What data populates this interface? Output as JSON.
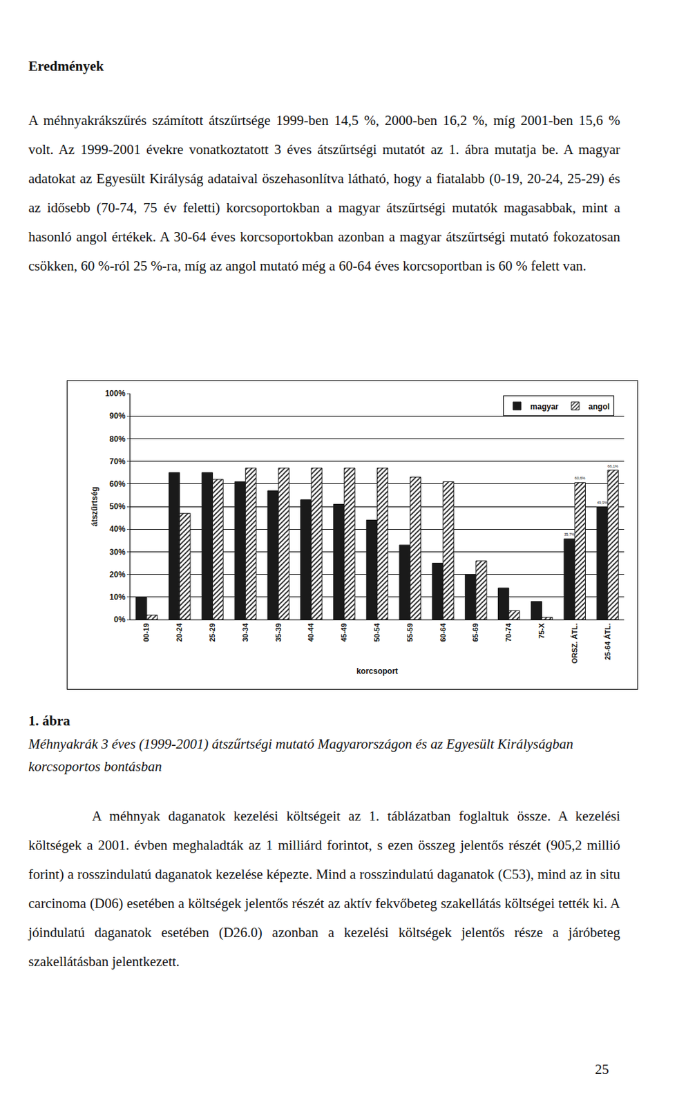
{
  "document": {
    "heading": "Eredmények",
    "paragraphs": [
      "A méhnyakrákszűrés számított átszűrtsége 1999-ben 14,5 %, 2000-ben 16,2 %, míg 2001-ben 15,6 % volt. Az 1999-2001 évekre vonatkoztatott 3 éves átszűrtségi mutatót az 1. ábra mutatja be. A magyar adatokat az Egyesült Királyság adataival öszehasonlítva látható, hogy a fiatalabb (0-19, 20-24, 25-29) és az idősebb (70-74, 75 év feletti) korcsoportokban a magyar átszűrtségi mutatók magasabbak, mint a hasonló angol értékek. A 30-64 éves korcsoportokban azonban a magyar átszűrtségi mutató fokozatosan csökken, 60 %-ról 25 %-ra, míg az angol mutató még a 60-64 éves korcsoportban is 60 % felett van.",
      "A méhnyak daganatok kezelési költségeit az 1. táblázatban foglaltuk össze. A kezelési költségek a 2001. évben meghaladták az 1 milliárd forintot, s ezen összeg jelentős részét (905,2 millió forint) a rosszindulatú daganatok kezelése képezte. Mind a rosszindulatú daganatok (C53), mind az in situ carcinoma (D06) esetében a költségek jelentős részét az aktív fekvőbeteg szakellátás költségei tették ki. A jóindulatú daganatok esetében (D26.0) azonban a kezelési költségek jelentős része a járóbeteg szakellátásban jelentkezett."
    ],
    "figure_label": "1. ábra",
    "figure_caption": "Méhnyakrák 3 éves (1999-2001) átszűrtségi mutató Magyarországon és az Egyesült Királyságban korcsoportos bontásban",
    "page_number": "25"
  },
  "chart_data": {
    "type": "bar",
    "x_label": "korcsoport",
    "y_label": "átszűrtség",
    "categories": [
      "00-19",
      "20-24",
      "25-29",
      "30-34",
      "35-39",
      "40-44",
      "45-49",
      "50-54",
      "55-59",
      "60-64",
      "65-69",
      "70-74",
      "75-X",
      "ORSZ. ÁTL.",
      "25-64 ÁTL."
    ],
    "series": [
      {
        "name": "magyar",
        "color": "#1a1a1a",
        "marker": "solid",
        "values": [
          10,
          65,
          65,
          61,
          57,
          53,
          51,
          44,
          33,
          25,
          20,
          14,
          8,
          35.7,
          49.9
        ],
        "value_labels": [
          null,
          null,
          null,
          null,
          null,
          null,
          null,
          null,
          null,
          null,
          null,
          null,
          null,
          "35,7%",
          "49,9%"
        ]
      },
      {
        "name": "angol",
        "color": "#1a1a1a",
        "marker": "hatched",
        "values": [
          2,
          47,
          62,
          67,
          67,
          67,
          67,
          67,
          63,
          61,
          26,
          4,
          1,
          60.6,
          66.1
        ],
        "value_labels": [
          null,
          null,
          null,
          null,
          null,
          null,
          null,
          null,
          null,
          null,
          null,
          null,
          null,
          "60,6%",
          "66,1%"
        ]
      }
    ],
    "ylim": [
      0,
      100
    ],
    "yticks": [
      {
        "value": 0,
        "label": "0%"
      },
      {
        "value": 10,
        "label": "10%"
      },
      {
        "value": 20,
        "label": "20%"
      },
      {
        "value": 30,
        "label": "30%"
      },
      {
        "value": 40,
        "label": "40%"
      },
      {
        "value": 50,
        "label": "50%"
      },
      {
        "value": 60,
        "label": "60%"
      },
      {
        "value": 70,
        "label": "70%"
      },
      {
        "value": 80,
        "label": "80%"
      },
      {
        "value": 90,
        "label": "90%"
      },
      {
        "value": 100,
        "label": "100%"
      }
    ],
    "grid": true,
    "legend": "top-right",
    "data_labels": true
  }
}
